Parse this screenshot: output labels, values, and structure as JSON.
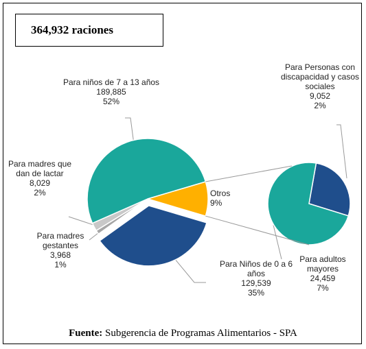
{
  "chart_data": {
    "type": "pie-of-pie",
    "title": "364,932 raciones",
    "source_label": "Fuente:",
    "source": "Subgerencia de Programas Alimentarios - SPA",
    "pies": [
      {
        "categories": [
          "Otros",
          "Para Niños de 0 a 6 años",
          "Para madres gestantes",
          "Para madres que dan de lactar",
          "Para niños de 7 a 13 años"
        ],
        "values": [
          33511,
          129539,
          3968,
          8029,
          189885
        ],
        "value_labels": [
          null,
          "129,539",
          "3,968",
          "8,029",
          "189,885"
        ],
        "percent_labels": [
          "9%",
          "35%",
          "1%",
          "2%",
          "52%"
        ],
        "colors": [
          "#ffb000",
          "#1f4e8c",
          "#a6a6a6",
          "#c8c8c8",
          "#1aa79b"
        ]
      },
      {
        "categories": [
          "Para Personas con discapacidad y casos sociales",
          "Para adultos mayores"
        ],
        "values": [
          9052,
          24459
        ],
        "value_labels": [
          "9,052",
          "24,459"
        ],
        "percent_labels": [
          "2%",
          "7%"
        ],
        "colors": [
          "#1f4e8c",
          "#1aa79b"
        ]
      }
    ]
  }
}
